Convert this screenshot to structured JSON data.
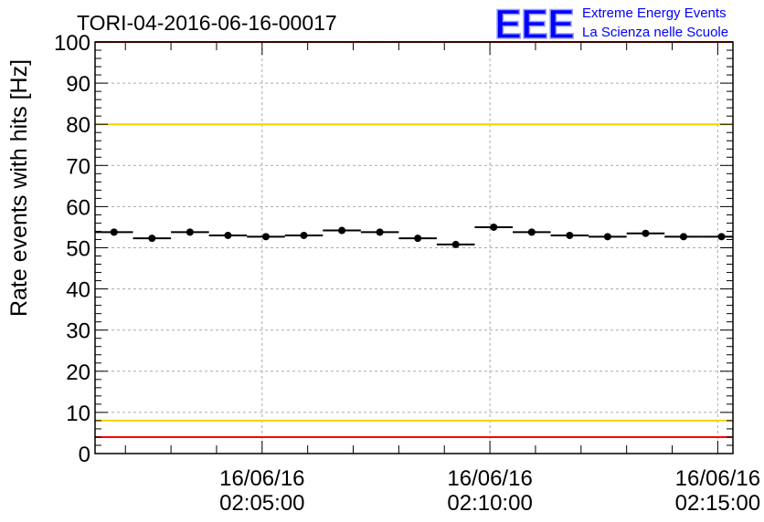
{
  "chart_data": {
    "type": "scatter",
    "title": "TORI-04-2016-06-16-00017",
    "ylabel": "Rate events with hits [Hz]",
    "xlabel": "",
    "ylim": [
      0,
      100
    ],
    "y_ticks": [
      0,
      10,
      20,
      30,
      40,
      50,
      60,
      70,
      80,
      90,
      100
    ],
    "x_range": [
      "02:01:20",
      "02:15:20"
    ],
    "x_ticks": [
      {
        "time": "02:05:00",
        "date_label": "16/06/16",
        "time_label": "02:05:00"
      },
      {
        "time": "02:10:00",
        "date_label": "16/06/16",
        "time_label": "02:10:00"
      },
      {
        "time": "02:15:00",
        "date_label": "16/06/16",
        "time_label": "02:15:00"
      }
    ],
    "grid": true,
    "bin_width_seconds": 50,
    "points": [
      {
        "x": "02:01:45",
        "y": 53.8
      },
      {
        "x": "02:02:35",
        "y": 52.3
      },
      {
        "x": "02:03:25",
        "y": 53.8
      },
      {
        "x": "02:04:15",
        "y": 53.0
      },
      {
        "x": "02:05:05",
        "y": 52.7
      },
      {
        "x": "02:05:55",
        "y": 53.0
      },
      {
        "x": "02:06:45",
        "y": 54.2
      },
      {
        "x": "02:07:35",
        "y": 53.8
      },
      {
        "x": "02:08:25",
        "y": 52.3
      },
      {
        "x": "02:09:15",
        "y": 50.8
      },
      {
        "x": "02:10:05",
        "y": 55.0
      },
      {
        "x": "02:10:55",
        "y": 53.8
      },
      {
        "x": "02:11:45",
        "y": 53.0
      },
      {
        "x": "02:12:35",
        "y": 52.7
      },
      {
        "x": "02:13:25",
        "y": 53.5
      },
      {
        "x": "02:14:15",
        "y": 52.7
      },
      {
        "x": "02:15:05",
        "y": 52.7
      }
    ],
    "thresholds": [
      {
        "y": 100,
        "color": "#ff0000"
      },
      {
        "y": 80,
        "color": "#f2d200"
      },
      {
        "y": 8,
        "color": "#f2d200"
      },
      {
        "y": 4,
        "color": "#ff0000"
      }
    ]
  },
  "logo": {
    "mark": "EEE",
    "line1": "Extreme Energy Events",
    "line2": "La Scienza nelle Scuole",
    "color": "#0000ff"
  }
}
